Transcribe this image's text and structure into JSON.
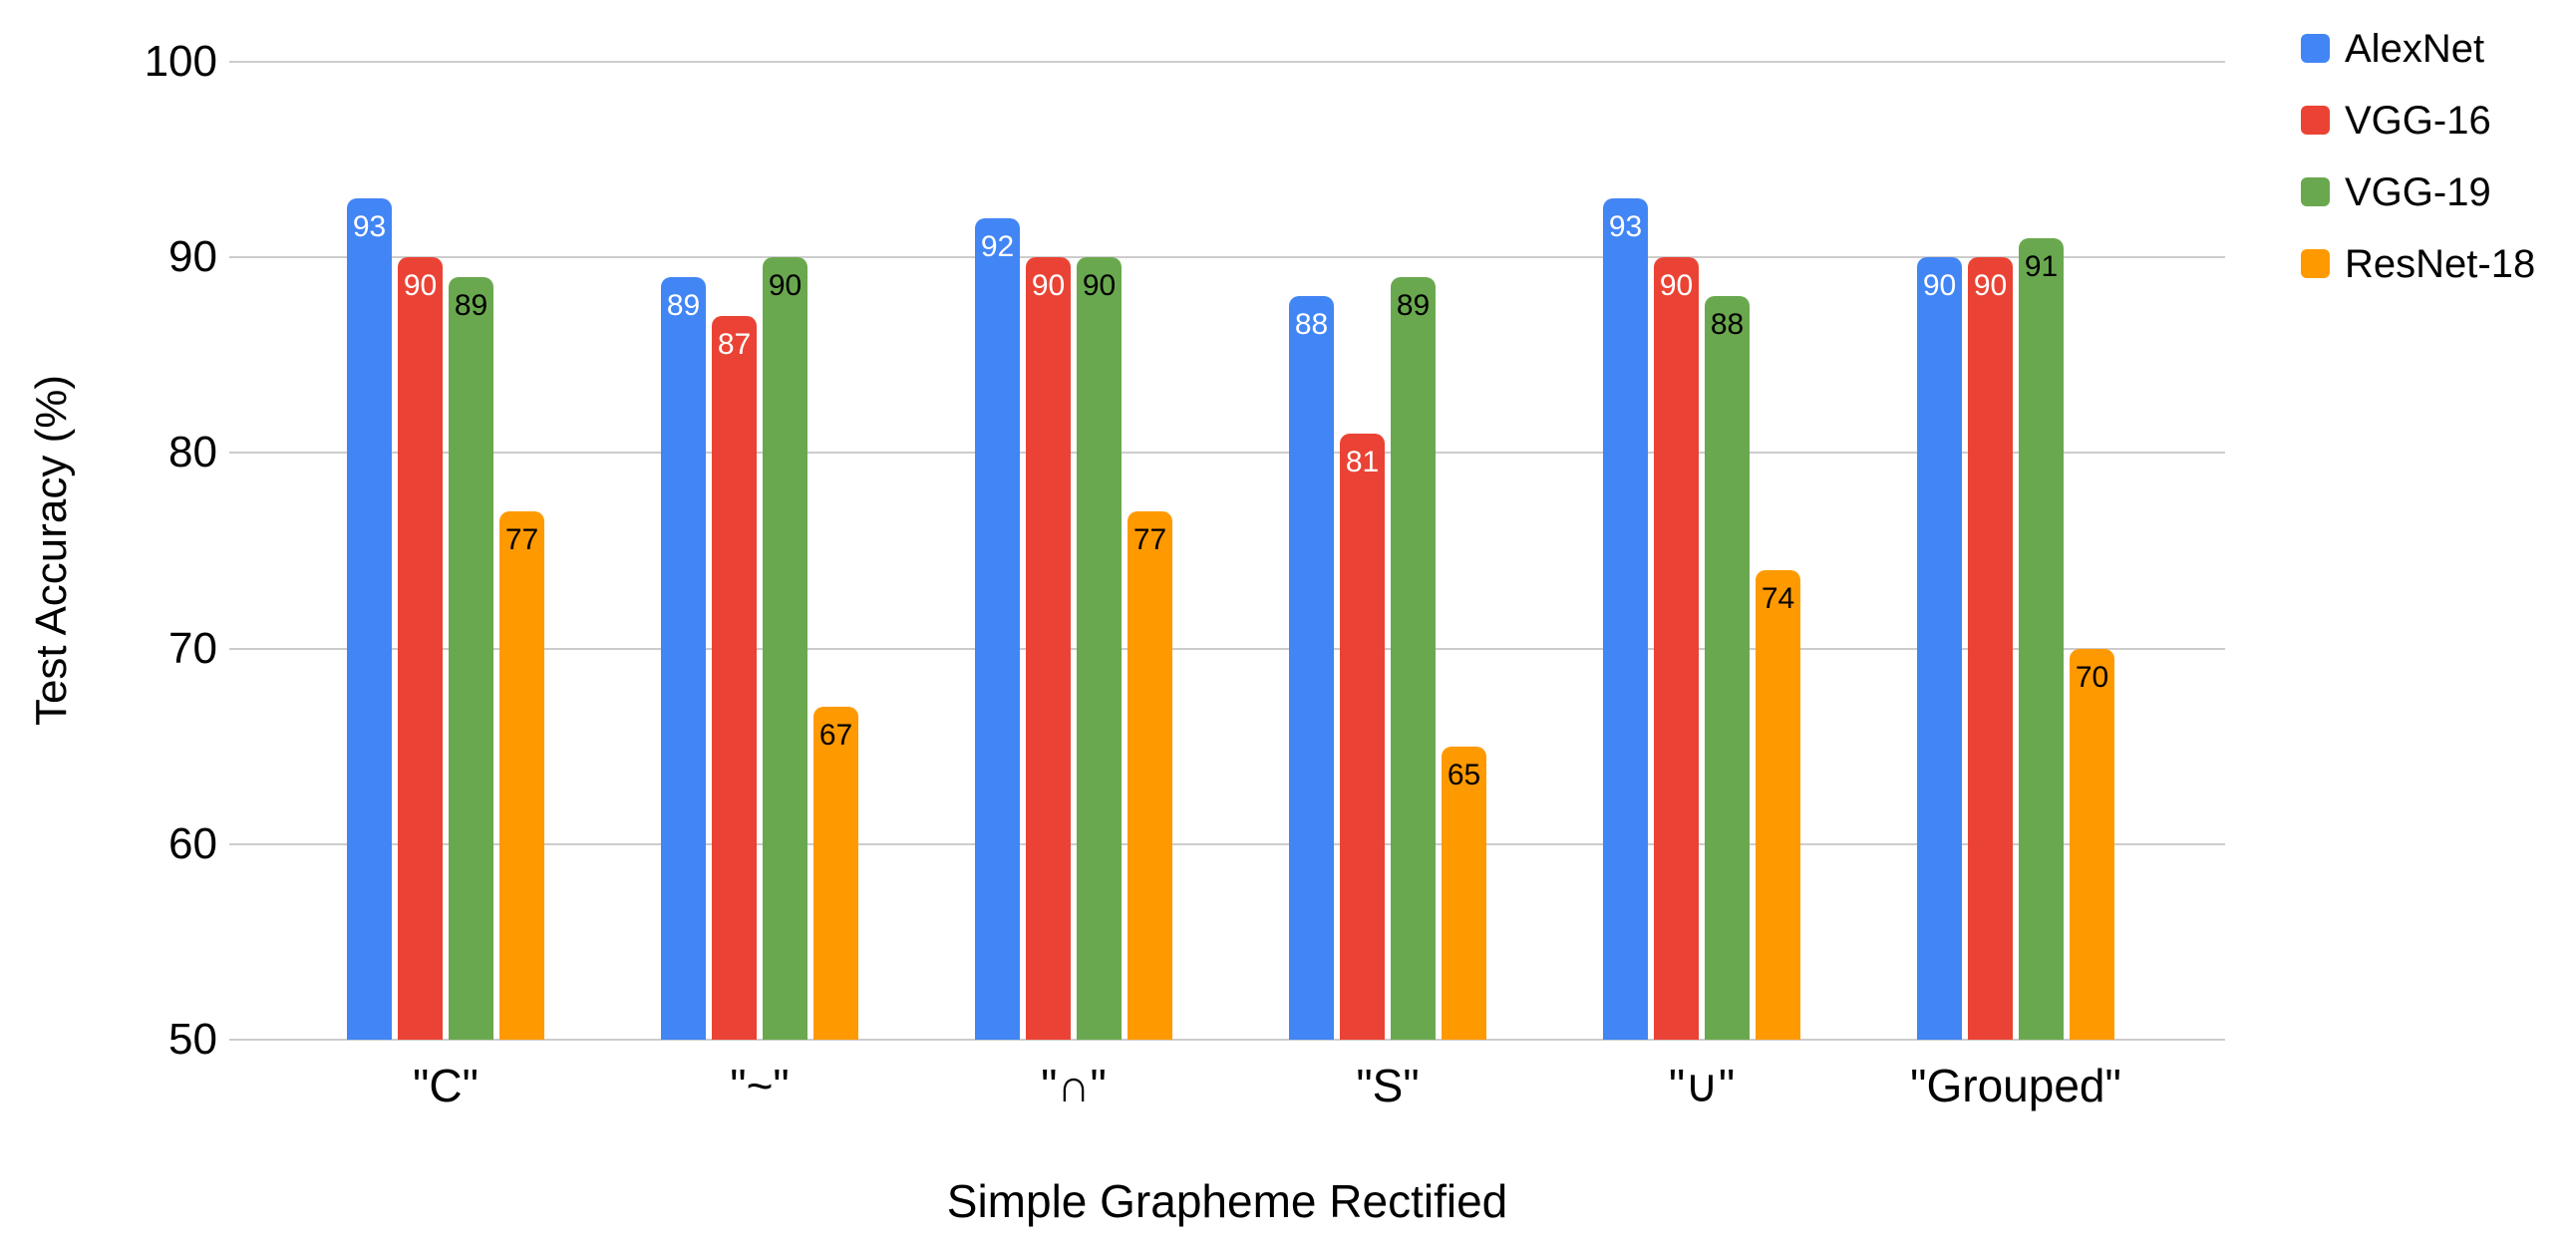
{
  "chart_data": {
    "type": "bar",
    "title": "",
    "xlabel": "Simple Grapheme Rectified",
    "ylabel": "Test Accuracy (%)",
    "categories": [
      "\"C\"",
      "\"~\"",
      "\"∩\"",
      "\"S\"",
      "\"∪\"",
      "\"Grouped\""
    ],
    "series": [
      {
        "name": "AlexNet",
        "color": "#4285F4",
        "label_color": "#ffffff",
        "values": [
          93,
          89,
          92,
          88,
          93,
          90
        ]
      },
      {
        "name": "VGG-16",
        "color": "#EA4335",
        "label_color": "#ffffff",
        "values": [
          90,
          87,
          90,
          81,
          90,
          90
        ]
      },
      {
        "name": "VGG-19",
        "color": "#6AA84F",
        "label_color": "#000000",
        "values": [
          89,
          90,
          90,
          89,
          88,
          91
        ]
      },
      {
        "name": "ResNet-18",
        "color": "#FF9900",
        "label_color": "#000000",
        "values": [
          77,
          67,
          77,
          65,
          74,
          70
        ]
      }
    ],
    "ylim": [
      50,
      100
    ],
    "yticks": [
      100,
      90,
      80,
      70,
      60,
      50
    ],
    "grid": true,
    "legend_position": "right",
    "bar_value_labels": true,
    "gridline_color": "#cccccc"
  }
}
